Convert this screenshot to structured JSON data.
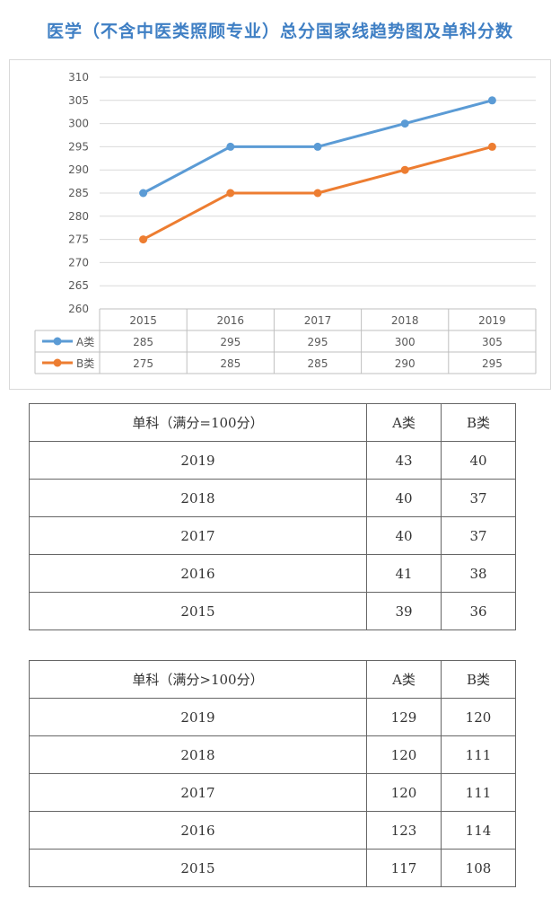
{
  "page_title": "医学（不含中医类照顾专业）总分国家线趋势图及单科分数",
  "chart_data": {
    "type": "line",
    "title": "",
    "xlabel": "",
    "ylabel": "",
    "ylim": [
      260,
      310
    ],
    "yticks": [
      260,
      265,
      270,
      275,
      280,
      285,
      290,
      295,
      300,
      305,
      310
    ],
    "categories": [
      "2015",
      "2016",
      "2017",
      "2018",
      "2019"
    ],
    "grid": true,
    "legend": "data-table",
    "series": [
      {
        "name": "A类",
        "color": "#5b9bd5",
        "values": [
          285,
          295,
          295,
          300,
          305
        ]
      },
      {
        "name": "B类",
        "color": "#ed7d31",
        "values": [
          275,
          285,
          285,
          290,
          295
        ]
      }
    ]
  },
  "table_100": {
    "headers": [
      "单科（满分=100分）",
      "A类",
      "B类"
    ],
    "rows": [
      [
        "2019",
        "43",
        "40"
      ],
      [
        "2018",
        "40",
        "37"
      ],
      [
        "2017",
        "40",
        "37"
      ],
      [
        "2016",
        "41",
        "38"
      ],
      [
        "2015",
        "39",
        "36"
      ]
    ]
  },
  "table_over100": {
    "headers": [
      "单科（满分>100分）",
      "A类",
      "B类"
    ],
    "rows": [
      [
        "2019",
        "129",
        "120"
      ],
      [
        "2018",
        "120",
        "111"
      ],
      [
        "2017",
        "120",
        "111"
      ],
      [
        "2016",
        "123",
        "114"
      ],
      [
        "2015",
        "117",
        "108"
      ]
    ]
  }
}
